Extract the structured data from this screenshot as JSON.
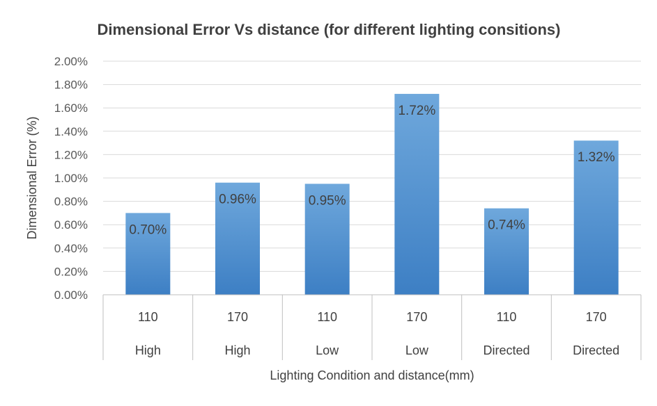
{
  "chart_data": {
    "type": "bar",
    "title": "Dimensional Error Vs distance (for different lighting consitions)",
    "xlabel": "Lighting Condition and distance(mm)",
    "ylabel": "Dimensional Error (%)",
    "ylim": [
      0,
      2.0
    ],
    "y_ticks": [
      "0.00%",
      "0.20%",
      "0.40%",
      "0.60%",
      "0.80%",
      "1.00%",
      "1.20%",
      "1.40%",
      "1.60%",
      "1.80%",
      "2.00%"
    ],
    "categories": [
      {
        "distance": "110",
        "lighting": "High"
      },
      {
        "distance": "170",
        "lighting": "High"
      },
      {
        "distance": "110",
        "lighting": "Low"
      },
      {
        "distance": "170",
        "lighting": "Low"
      },
      {
        "distance": "110",
        "lighting": "Directed"
      },
      {
        "distance": "170",
        "lighting": "Directed"
      }
    ],
    "values": [
      0.7,
      0.96,
      0.95,
      1.72,
      0.74,
      1.32
    ],
    "data_labels": [
      "0.70%",
      "0.96%",
      "0.95%",
      "1.72%",
      "0.74%",
      "1.32%"
    ],
    "grid": true,
    "legend": "none",
    "colors": {
      "bar_top": "#6fa8dc",
      "bar_bottom": "#3d7fc4",
      "grid": "#d9d9d9",
      "axis": "#bfbfbf"
    }
  }
}
